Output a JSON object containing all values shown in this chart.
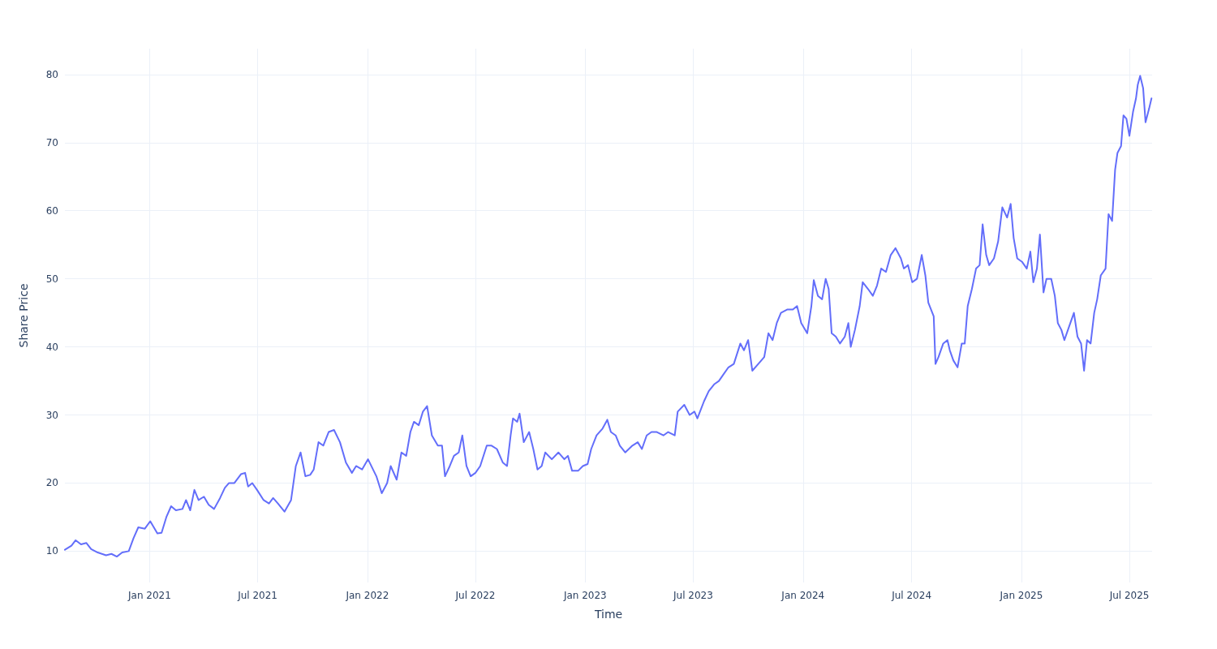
{
  "chart_data": {
    "type": "line",
    "xlabel": "Time",
    "ylabel": "Share Price",
    "grid": true,
    "marker": "none",
    "line_style": "solid",
    "xlim": [
      "2020-08-12",
      "2025-08-08"
    ],
    "xticks": [
      {
        "value": "2021-01-01",
        "label": "Jan 2021"
      },
      {
        "value": "2021-07-01",
        "label": "Jul 2021"
      },
      {
        "value": "2022-01-01",
        "label": "Jan 2022"
      },
      {
        "value": "2022-07-01",
        "label": "Jul 2022"
      },
      {
        "value": "2023-01-01",
        "label": "Jan 2023"
      },
      {
        "value": "2023-07-01",
        "label": "Jul 2023"
      },
      {
        "value": "2024-01-01",
        "label": "Jan 2024"
      },
      {
        "value": "2024-07-01",
        "label": "Jul 2024"
      },
      {
        "value": "2025-01-01",
        "label": "Jan 2025"
      },
      {
        "value": "2025-07-01",
        "label": "Jul 2025"
      }
    ],
    "ylim": [
      5.4,
      83.8
    ],
    "yticks": [
      10,
      20,
      30,
      40,
      50,
      60,
      70,
      80
    ],
    "x": [
      "2020-08-12",
      "2020-08-23",
      "2020-08-30",
      "2020-09-08",
      "2020-09-17",
      "2020-09-25",
      "2020-10-06",
      "2020-10-20",
      "2020-10-29",
      "2020-11-07",
      "2020-11-16",
      "2020-11-27",
      "2020-12-05",
      "2020-12-13",
      "2020-12-24",
      "2021-01-02",
      "2021-01-14",
      "2021-01-21",
      "2021-01-29",
      "2021-02-06",
      "2021-02-14",
      "2021-02-25",
      "2021-03-03",
      "2021-03-10",
      "2021-03-17",
      "2021-03-24",
      "2021-04-02",
      "2021-04-10",
      "2021-04-19",
      "2021-04-29",
      "2021-05-07",
      "2021-05-14",
      "2021-05-23",
      "2021-06-03",
      "2021-06-10",
      "2021-06-15",
      "2021-06-22",
      "2021-06-30",
      "2021-07-11",
      "2021-07-20",
      "2021-07-27",
      "2021-08-04",
      "2021-08-15",
      "2021-08-26",
      "2021-09-03",
      "2021-09-11",
      "2021-09-19",
      "2021-09-27",
      "2021-10-03",
      "2021-10-11",
      "2021-10-19",
      "2021-10-28",
      "2021-11-06",
      "2021-11-16",
      "2021-11-26",
      "2021-12-06",
      "2021-12-13",
      "2021-12-23",
      "2022-01-02",
      "2022-01-16",
      "2022-01-25",
      "2022-02-03",
      "2022-02-09",
      "2022-02-19",
      "2022-02-27",
      "2022-03-07",
      "2022-03-14",
      "2022-03-20",
      "2022-03-28",
      "2022-04-04",
      "2022-04-11",
      "2022-04-19",
      "2022-04-29",
      "2022-05-06",
      "2022-05-11",
      "2022-05-19",
      "2022-05-26",
      "2022-06-03",
      "2022-06-09",
      "2022-06-16",
      "2022-06-23",
      "2022-07-01",
      "2022-07-09",
      "2022-07-20",
      "2022-07-28",
      "2022-08-06",
      "2022-08-16",
      "2022-08-23",
      "2022-08-29",
      "2022-09-02",
      "2022-09-09",
      "2022-09-13",
      "2022-09-20",
      "2022-09-29",
      "2022-10-06",
      "2022-10-13",
      "2022-10-20",
      "2022-10-26",
      "2022-11-06",
      "2022-11-17",
      "2022-11-27",
      "2022-12-03",
      "2022-12-10",
      "2022-12-20",
      "2022-12-28",
      "2023-01-05",
      "2023-01-11",
      "2023-01-20",
      "2023-01-30",
      "2023-02-07",
      "2023-02-13",
      "2023-02-21",
      "2023-02-28",
      "2023-03-09",
      "2023-03-21",
      "2023-03-30",
      "2023-04-06",
      "2023-04-14",
      "2023-04-22",
      "2023-05-01",
      "2023-05-12",
      "2023-05-20",
      "2023-05-31",
      "2023-06-05",
      "2023-06-16",
      "2023-06-25",
      "2023-07-03",
      "2023-07-08",
      "2023-07-19",
      "2023-07-27",
      "2023-08-05",
      "2023-08-13",
      "2023-08-21",
      "2023-08-29",
      "2023-09-07",
      "2023-09-18",
      "2023-09-24",
      "2023-10-01",
      "2023-10-08",
      "2023-10-18",
      "2023-10-28",
      "2023-11-04",
      "2023-11-11",
      "2023-11-18",
      "2023-11-25",
      "2023-12-06",
      "2023-12-15",
      "2023-12-22",
      "2023-12-29",
      "2024-01-08",
      "2024-01-15",
      "2024-01-19",
      "2024-01-26",
      "2024-02-02",
      "2024-02-08",
      "2024-02-13",
      "2024-02-18",
      "2024-02-25",
      "2024-03-03",
      "2024-03-11",
      "2024-03-17",
      "2024-03-21",
      "2024-03-28",
      "2024-04-05",
      "2024-04-10",
      "2024-04-19",
      "2024-04-27",
      "2024-05-04",
      "2024-05-11",
      "2024-05-19",
      "2024-05-27",
      "2024-06-04",
      "2024-06-13",
      "2024-06-18",
      "2024-06-25",
      "2024-07-02",
      "2024-07-10",
      "2024-07-18",
      "2024-07-24",
      "2024-07-29",
      "2024-08-07",
      "2024-08-10",
      "2024-08-15",
      "2024-08-23",
      "2024-08-30",
      "2024-09-03",
      "2024-09-09",
      "2024-09-16",
      "2024-09-23",
      "2024-09-28",
      "2024-10-03",
      "2024-10-10",
      "2024-10-17",
      "2024-10-23",
      "2024-10-28",
      "2024-11-03",
      "2024-11-08",
      "2024-11-16",
      "2024-11-23",
      "2024-11-30",
      "2024-12-08",
      "2024-12-14",
      "2024-12-19",
      "2024-12-25",
      "2025-01-02",
      "2025-01-10",
      "2025-01-16",
      "2025-01-21",
      "2025-01-27",
      "2025-02-01",
      "2025-02-07",
      "2025-02-12",
      "2025-02-20",
      "2025-02-26",
      "2025-03-03",
      "2025-03-09",
      "2025-03-14",
      "2025-03-22",
      "2025-03-30",
      "2025-04-05",
      "2025-04-11",
      "2025-04-16",
      "2025-04-21",
      "2025-04-27",
      "2025-05-03",
      "2025-05-08",
      "2025-05-14",
      "2025-05-22",
      "2025-05-27",
      "2025-06-02",
      "2025-06-07",
      "2025-06-11",
      "2025-06-17",
      "2025-06-21",
      "2025-06-26",
      "2025-07-01",
      "2025-07-07",
      "2025-07-12",
      "2025-07-15",
      "2025-07-19",
      "2025-07-24",
      "2025-07-28",
      "2025-08-03",
      "2025-08-07"
    ],
    "series": [
      {
        "color": "#636efa",
        "values": [
          10.2,
          10.8,
          11.6,
          11.0,
          11.2,
          10.3,
          9.8,
          9.4,
          9.6,
          9.2,
          9.8,
          10.0,
          11.9,
          13.5,
          13.3,
          14.4,
          12.6,
          12.7,
          15.0,
          16.6,
          16.0,
          16.2,
          17.5,
          16.0,
          19.0,
          17.5,
          18.0,
          16.8,
          16.2,
          17.8,
          19.3,
          20.0,
          20.0,
          21.3,
          21.5,
          19.5,
          20.0,
          19.0,
          17.5,
          17.0,
          17.8,
          17.0,
          15.8,
          17.5,
          22.5,
          24.5,
          21.0,
          21.2,
          22.0,
          26.0,
          25.5,
          27.5,
          27.8,
          26.0,
          23.0,
          21.5,
          22.5,
          22.0,
          23.5,
          21.0,
          18.5,
          20.0,
          22.5,
          20.5,
          24.5,
          24.0,
          27.5,
          29.0,
          28.5,
          30.5,
          31.3,
          27.0,
          25.5,
          25.5,
          21.0,
          22.5,
          24.0,
          24.5,
          27.0,
          22.5,
          21.0,
          21.5,
          22.5,
          25.5,
          25.5,
          25.0,
          23.0,
          22.5,
          27.0,
          29.5,
          29.0,
          30.2,
          26.0,
          27.5,
          25.0,
          22.0,
          22.5,
          24.5,
          23.5,
          24.5,
          23.5,
          24.0,
          21.8,
          21.8,
          22.5,
          22.8,
          25.0,
          27.0,
          28.0,
          29.3,
          27.5,
          27.0,
          25.5,
          24.5,
          25.5,
          26.0,
          25.0,
          27.0,
          27.5,
          27.5,
          27.0,
          27.5,
          27.0,
          30.5,
          31.5,
          30.0,
          30.5,
          29.5,
          32.0,
          33.5,
          34.5,
          35.0,
          36.0,
          37.0,
          37.5,
          40.5,
          39.5,
          41.0,
          36.5,
          37.5,
          38.5,
          42.0,
          41.0,
          43.5,
          45.0,
          45.5,
          45.5,
          46.0,
          43.5,
          42.0,
          46.0,
          49.8,
          47.5,
          47.0,
          50.0,
          48.5,
          42.0,
          41.5,
          40.5,
          41.5,
          43.5,
          40.0,
          42.5,
          46.0,
          49.5,
          48.5,
          47.5,
          49.0,
          51.5,
          51.0,
          53.5,
          54.5,
          53.0,
          51.5,
          52.0,
          49.5,
          50.0,
          53.5,
          50.5,
          46.5,
          44.5,
          37.5,
          38.5,
          40.5,
          41.0,
          39.5,
          38.0,
          37.0,
          40.5,
          40.5,
          46.0,
          48.5,
          51.5,
          52.0,
          58.0,
          53.5,
          52.0,
          53.0,
          55.5,
          60.5,
          59.0,
          61.0,
          56.0,
          53.0,
          52.5,
          51.5,
          54.0,
          49.5,
          51.5,
          56.5,
          48.0,
          50.0,
          50.0,
          47.5,
          43.5,
          42.5,
          41.0,
          43.0,
          45.0,
          41.5,
          40.5,
          36.5,
          41.0,
          40.5,
          45.0,
          47.0,
          50.5,
          51.5,
          59.5,
          58.5,
          66.0,
          68.5,
          69.5,
          74.0,
          73.5,
          71.0,
          74.5,
          76.5,
          78.5,
          79.8,
          78.0,
          73.0,
          75.0,
          76.5
        ]
      }
    ]
  }
}
